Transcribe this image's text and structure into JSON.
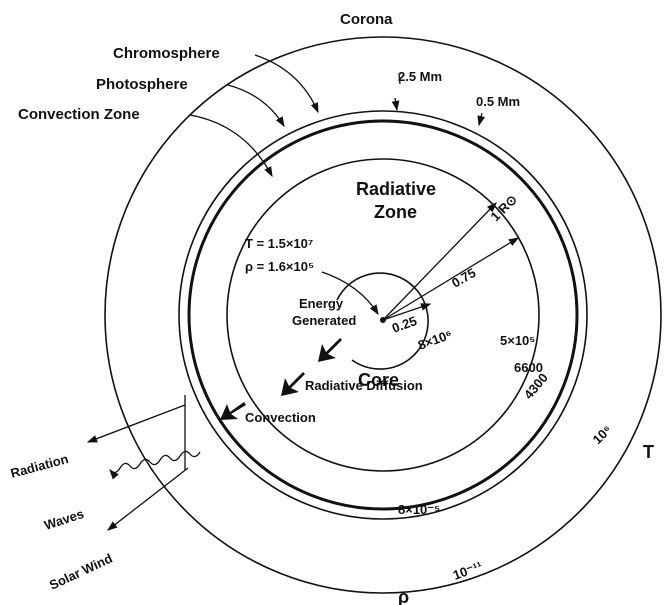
{
  "regions": {
    "corona": "Corona",
    "chromosphere": "Chromosphere",
    "photosphere": "Photosphere",
    "convection_zone": "Convection Zone",
    "radiative_zone": [
      "Radiative",
      "Zone"
    ],
    "core": "Core"
  },
  "thickness": {
    "chromosphere": "2.5 Mm",
    "photosphere": "0.5 Mm"
  },
  "radii": {
    "surface": "1 R⊙",
    "radiative": "0.75",
    "core": "0.25"
  },
  "center": {
    "temperature": "T = 1.5×10⁷",
    "density": "ρ = 1.6×10⁵"
  },
  "processes": {
    "energy": [
      "Energy",
      "Generated"
    ],
    "diffusion": "Radiative Diffusion",
    "convection": "Convection"
  },
  "outputs": {
    "radiation": "Radiation",
    "waves": "Waves",
    "solar_wind": "Solar Wind"
  },
  "temperature_scale": {
    "core": "8×10⁶",
    "radiative": "5×10⁵",
    "photosphere": "6600",
    "chromosphere": "4300",
    "corona": "10⁶",
    "label": "T"
  },
  "density_scale": {
    "photosphere": "8×10⁻⁵",
    "corona": "10⁻¹¹",
    "label": "ρ"
  }
}
